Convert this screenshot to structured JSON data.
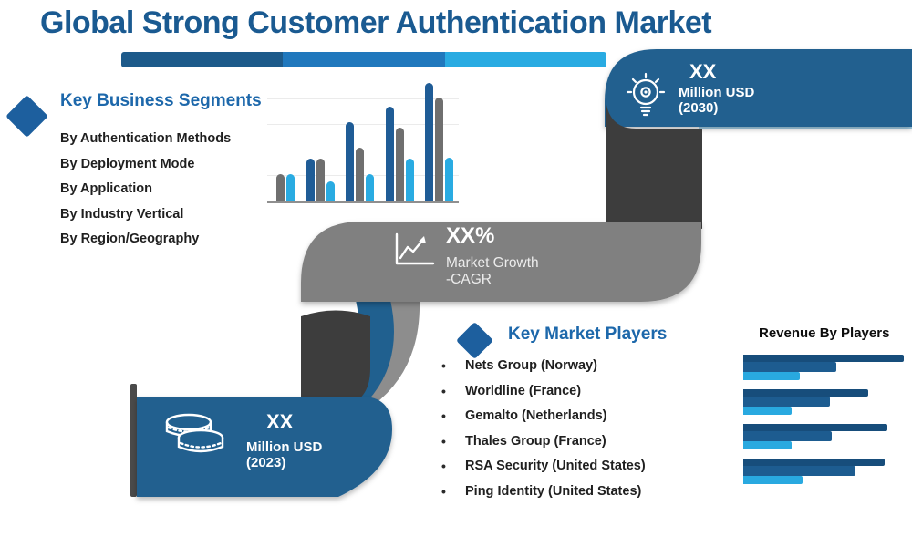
{
  "title": "Global Strong Customer Authentication Market",
  "colors": {
    "title_blue": "#1a5a91",
    "heading_blue": "#1d68ab",
    "ribbon_blue": "#20608f",
    "light_strip": "#a9d6ee",
    "charcoal": "#3d3d3d",
    "gray_band": "#808080",
    "gray_sliver": "#8d8d8d",
    "pole": "#4a4a4a",
    "diamond_blue": "#1d5f9e",
    "text_dark": "#1f1f1f",
    "progress_seg1": "#1d5a8a",
    "progress_seg2": "#2078bd",
    "progress_seg3": "#29abe2"
  },
  "segments": {
    "heading": "Key Business Segments",
    "items": [
      "By Authentication Methods",
      "By Deployment Mode",
      "By Application",
      "By Industry Vertical",
      "By Region/Geography"
    ]
  },
  "players": {
    "heading": "Key Market Players",
    "items": [
      "Nets Group (Norway)",
      "Worldline (France)",
      "Gemalto (Netherlands)",
      "Thales Group (France)",
      "RSA Security (United States)",
      "Ping Identity (United States)"
    ]
  },
  "stats": {
    "forecast": {
      "value": "XX",
      "unit": "Million USD",
      "year": "(2030)",
      "icon": "lightbulb-gear-icon"
    },
    "cagr": {
      "value": "XX%",
      "label1": "Market Growth",
      "label2": "-CAGR",
      "icon": "growth-chart-icon"
    },
    "base": {
      "value": "XX",
      "unit": "Million USD",
      "year": "(2023)",
      "icon": "coins-icon"
    }
  },
  "chart_data": [
    {
      "type": "bar",
      "title": "",
      "note": "decorative grouped column chart, no axis labels visible",
      "categories": [
        "",
        "",
        "",
        "",
        ""
      ],
      "series": [
        {
          "name": "dark-blue",
          "color": "#1f5c96",
          "values": [
            0,
            36,
            67,
            80,
            100
          ]
        },
        {
          "name": "gray",
          "color": "#6f6f6f",
          "values": [
            23,
            36,
            45,
            62,
            88
          ]
        },
        {
          "name": "light-blue",
          "color": "#29abe2",
          "values": [
            23,
            17,
            23,
            36,
            37
          ]
        }
      ],
      "ylim": [
        0,
        100
      ],
      "grid": true,
      "legend": false
    },
    {
      "type": "bar",
      "orientation": "horizontal",
      "title": "Revenue By Players",
      "note": "4 player groups, each with three stepped bars (long thin dark, medium dark, short light)",
      "bar_colors": [
        "#174d7b",
        "#1d5c90",
        "#29a9e0"
      ],
      "groups": [
        [
          100,
          58,
          35
        ],
        [
          78,
          54,
          30
        ],
        [
          90,
          55,
          30
        ],
        [
          88,
          70,
          37
        ]
      ],
      "xlim": [
        0,
        100
      ],
      "legend": false
    }
  ]
}
